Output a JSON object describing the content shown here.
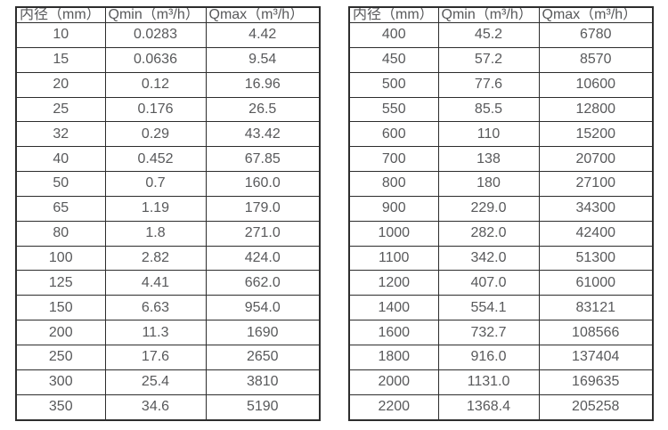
{
  "colors": {
    "background": "#ffffff",
    "border": "#2d2d2d",
    "text": "#58595b"
  },
  "tables": [
    {
      "name": "flow-spec-table-small-diameters",
      "headers": [
        "内径（mm）",
        "Qmin（m³/h）",
        "Qmax（m³/h）"
      ],
      "rows": [
        [
          "10",
          "0.0283",
          "4.42"
        ],
        [
          "15",
          "0.0636",
          "9.54"
        ],
        [
          "20",
          "0.12",
          "16.96"
        ],
        [
          "25",
          "0.176",
          "26.5"
        ],
        [
          "32",
          "0.29",
          "43.42"
        ],
        [
          "40",
          "0.452",
          "67.85"
        ],
        [
          "50",
          "0.7",
          "160.0"
        ],
        [
          "65",
          "1.19",
          "179.0"
        ],
        [
          "80",
          "1.8",
          "271.0"
        ],
        [
          "100",
          "2.82",
          "424.0"
        ],
        [
          "125",
          "4.41",
          "662.0"
        ],
        [
          "150",
          "6.63",
          "954.0"
        ],
        [
          "200",
          "11.3",
          "1690"
        ],
        [
          "250",
          "17.6",
          "2650"
        ],
        [
          "300",
          "25.4",
          "3810"
        ],
        [
          "350",
          "34.6",
          "5190"
        ]
      ]
    },
    {
      "name": "flow-spec-table-large-diameters",
      "headers": [
        "内径（mm）",
        "Qmin（m³/h）",
        "Qmax（m³/h）"
      ],
      "rows": [
        [
          "400",
          "45.2",
          "6780"
        ],
        [
          "450",
          "57.2",
          "8570"
        ],
        [
          "500",
          "77.6",
          "10600"
        ],
        [
          "550",
          "85.5",
          "12800"
        ],
        [
          "600",
          "110",
          "15200"
        ],
        [
          "700",
          "138",
          "20700"
        ],
        [
          "800",
          "180",
          "27100"
        ],
        [
          "900",
          "229.0",
          "34300"
        ],
        [
          "1000",
          "282.0",
          "42400"
        ],
        [
          "1100",
          "342.0",
          "51300"
        ],
        [
          "1200",
          "407.0",
          "61000"
        ],
        [
          "1400",
          "554.1",
          "83121"
        ],
        [
          "1600",
          "732.7",
          "108566"
        ],
        [
          "1800",
          "916.0",
          "137404"
        ],
        [
          "2000",
          "1131.0",
          "169635"
        ],
        [
          "2200",
          "1368.4",
          "205258"
        ]
      ]
    }
  ]
}
